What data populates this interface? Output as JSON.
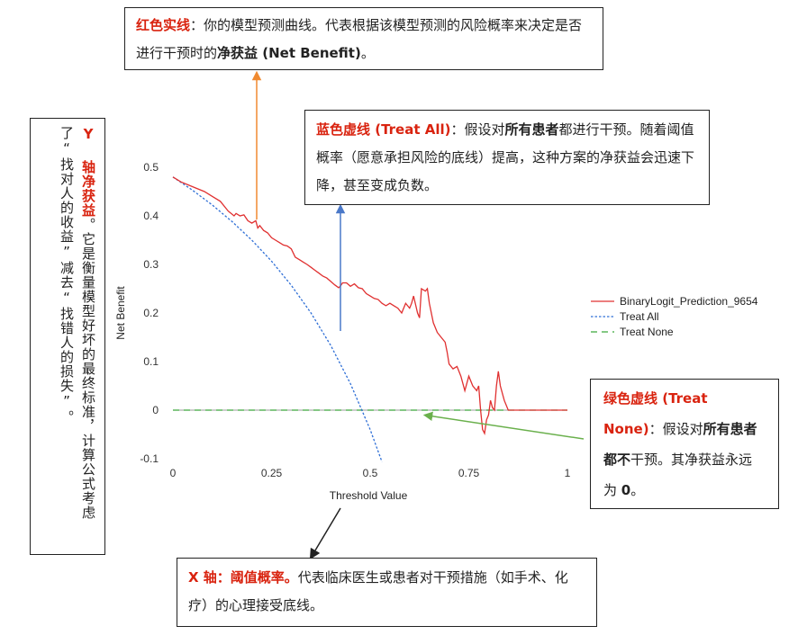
{
  "chart_data": {
    "type": "line",
    "xlabel": "Threshold Value",
    "ylabel": "Net Benefit",
    "xlim": [
      0,
      1
    ],
    "ylim": [
      -0.1,
      0.5
    ],
    "xticks": [
      0,
      0.25,
      0.5,
      0.75,
      1
    ],
    "xtick_labels": [
      "0",
      "0.25",
      "0.5",
      "0.75",
      "1"
    ],
    "yticks": [
      -0.1,
      0,
      0.1,
      0.2,
      0.3,
      0.4,
      0.5
    ],
    "ytick_labels": [
      "-0.1",
      "0",
      "0.1",
      "0.2",
      "0.3",
      "0.4",
      "0.5"
    ],
    "grid": false,
    "legend_position": "right",
    "series": [
      {
        "name": "BinaryLogit_Prediction_9654",
        "color": "#e03030",
        "style": "solid",
        "x": [
          0,
          0.02,
          0.05,
          0.08,
          0.1,
          0.12,
          0.14,
          0.155,
          0.16,
          0.17,
          0.18,
          0.19,
          0.2,
          0.21,
          0.215,
          0.22,
          0.23,
          0.24,
          0.25,
          0.26,
          0.27,
          0.28,
          0.29,
          0.3,
          0.31,
          0.32,
          0.33,
          0.34,
          0.35,
          0.36,
          0.37,
          0.38,
          0.39,
          0.4,
          0.41,
          0.42,
          0.425,
          0.43,
          0.44,
          0.45,
          0.46,
          0.47,
          0.48,
          0.49,
          0.5,
          0.51,
          0.52,
          0.53,
          0.54,
          0.55,
          0.56,
          0.57,
          0.58,
          0.59,
          0.6,
          0.605,
          0.61,
          0.62,
          0.625,
          0.63,
          0.64,
          0.645,
          0.65,
          0.66,
          0.67,
          0.68,
          0.69,
          0.695,
          0.7,
          0.71,
          0.72,
          0.73,
          0.74,
          0.75,
          0.76,
          0.77,
          0.775,
          0.78,
          0.785,
          0.79,
          0.795,
          0.8,
          0.805,
          0.81,
          0.815,
          0.82,
          0.825,
          0.83,
          0.84,
          0.85,
          0.9,
          0.95,
          1.0
        ],
        "y": [
          0.48,
          0.47,
          0.46,
          0.45,
          0.44,
          0.43,
          0.41,
          0.4,
          0.405,
          0.4,
          0.402,
          0.39,
          0.385,
          0.39,
          0.375,
          0.38,
          0.37,
          0.365,
          0.355,
          0.35,
          0.345,
          0.34,
          0.338,
          0.332,
          0.315,
          0.31,
          0.305,
          0.3,
          0.294,
          0.288,
          0.282,
          0.276,
          0.272,
          0.265,
          0.258,
          0.252,
          0.256,
          0.262,
          0.262,
          0.255,
          0.26,
          0.252,
          0.25,
          0.24,
          0.235,
          0.23,
          0.228,
          0.22,
          0.215,
          0.22,
          0.215,
          0.21,
          0.2,
          0.22,
          0.21,
          0.22,
          0.235,
          0.2,
          0.19,
          0.25,
          0.245,
          0.25,
          0.22,
          0.18,
          0.16,
          0.15,
          0.14,
          0.12,
          0.095,
          0.085,
          0.09,
          0.07,
          0.04,
          0.07,
          0.05,
          0.04,
          0.05,
          0.0,
          -0.04,
          -0.048,
          -0.02,
          -0.01,
          0.02,
          0.005,
          0.0,
          0.05,
          0.08,
          0.05,
          0.02,
          0.0,
          0.0,
          0.0,
          0.0
        ]
      },
      {
        "name": "Treat All",
        "color": "#2f6fd6",
        "style": "dotted",
        "x": [
          0,
          0.05,
          0.1,
          0.15,
          0.2,
          0.25,
          0.3,
          0.35,
          0.4,
          0.45,
          0.5,
          0.53
        ],
        "y": [
          0.48,
          0.4526,
          0.4222,
          0.3882,
          0.35,
          0.3067,
          0.2571,
          0.2,
          0.1333,
          0.0545,
          -0.04,
          -0.1064
        ]
      },
      {
        "name": "Treat None",
        "color": "#3aa63a",
        "style": "dashed",
        "x": [
          0,
          1
        ],
        "y": [
          0,
          0
        ]
      }
    ]
  },
  "callouts": {
    "red": {
      "title": "红色实线",
      "text": "：你的模型预测曲线。代表根据该模型预测的风险概率来决定是否进行干预时的",
      "bold": "净获益 (Net Benefit)",
      "end": "。"
    },
    "blue": {
      "title": "蓝色虚线 (Treat All)",
      "text1": "：假设对",
      "bold": "所有患者",
      "text2": "都进行干预。随着阈值概率（愿意承担风险的底线）提高，这种方案的净获益会迅速下降，甚至变成负数。"
    },
    "green": {
      "title": "绿色虚线 (Treat None)",
      "text1": "：假设对",
      "bold1": "所有患者都不",
      "text2": "干预。其净获益永远为 ",
      "bold2": "0",
      "end": "。"
    },
    "x": {
      "title": "X 轴：阈值概率。",
      "text": "代表临床医生或患者对干预措施（如手术、化疗）的心理接受底线。"
    },
    "y": {
      "title": "Y 轴净获益",
      "text": "。它是衡量模型好坏的最终标准，计算公式考虑了“找对人的收益”减去“找错人的损失”。"
    }
  },
  "arrows": {
    "orange": "#f08a30",
    "blue": "#4a78c8",
    "green": "#6ab04c",
    "black": "#222222"
  }
}
